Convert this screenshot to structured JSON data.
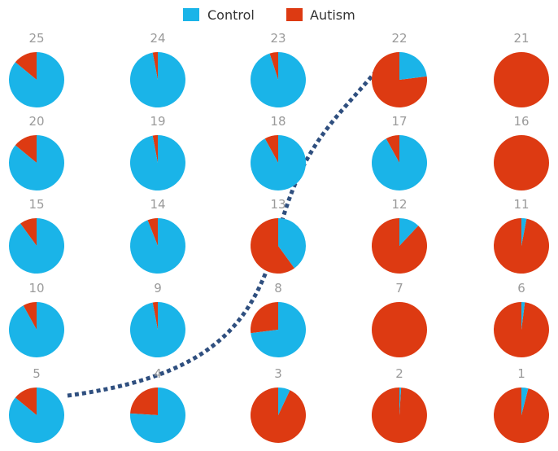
{
  "chart_data": {
    "type": "pie",
    "layout": "small-multiples grid, 5 columns x 5 rows, numbered 25 (top-left) down to 1 (bottom-right)",
    "legend": {
      "position": "top-center",
      "entries": [
        {
          "name": "Control",
          "color": "#1ab4e8"
        },
        {
          "name": "Autism",
          "color": "#dd3a12"
        }
      ]
    },
    "series_colors": {
      "Control": "#1ab4e8",
      "Autism": "#dd3a12"
    },
    "pies": [
      {
        "label": "25",
        "control": 0.86,
        "autism": 0.14
      },
      {
        "label": "24",
        "control": 0.97,
        "autism": 0.03
      },
      {
        "label": "23",
        "control": 0.95,
        "autism": 0.05
      },
      {
        "label": "22",
        "control": 0.23,
        "autism": 0.77
      },
      {
        "label": "21",
        "control": 0.0,
        "autism": 1.0
      },
      {
        "label": "20",
        "control": 0.86,
        "autism": 0.14
      },
      {
        "label": "19",
        "control": 0.97,
        "autism": 0.03
      },
      {
        "label": "18",
        "control": 0.92,
        "autism": 0.08
      },
      {
        "label": "17",
        "control": 0.92,
        "autism": 0.08
      },
      {
        "label": "16",
        "control": 0.0,
        "autism": 1.0
      },
      {
        "label": "15",
        "control": 0.9,
        "autism": 0.1
      },
      {
        "label": "14",
        "control": 0.94,
        "autism": 0.06
      },
      {
        "label": "13",
        "control": 0.4,
        "autism": 0.6
      },
      {
        "label": "12",
        "control": 0.12,
        "autism": 0.88
      },
      {
        "label": "11",
        "control": 0.03,
        "autism": 0.97
      },
      {
        "label": "10",
        "control": 0.92,
        "autism": 0.08
      },
      {
        "label": "9",
        "control": 0.97,
        "autism": 0.03
      },
      {
        "label": "8",
        "control": 0.73,
        "autism": 0.27
      },
      {
        "label": "7",
        "control": 0.0,
        "autism": 1.0
      },
      {
        "label": "6",
        "control": 0.02,
        "autism": 0.98
      },
      {
        "label": "5",
        "control": 0.86,
        "autism": 0.14
      },
      {
        "label": "4",
        "control": 0.76,
        "autism": 0.24
      },
      {
        "label": "3",
        "control": 0.07,
        "autism": 0.93
      },
      {
        "label": "2",
        "control": 0.01,
        "autism": 0.99
      },
      {
        "label": "1",
        "control": 0.04,
        "autism": 0.96
      }
    ],
    "annotation": {
      "kind": "dotted-curve",
      "color": "#2f4f7f",
      "passes_through_labels": [
        "5",
        "9",
        "13",
        "22"
      ]
    }
  }
}
